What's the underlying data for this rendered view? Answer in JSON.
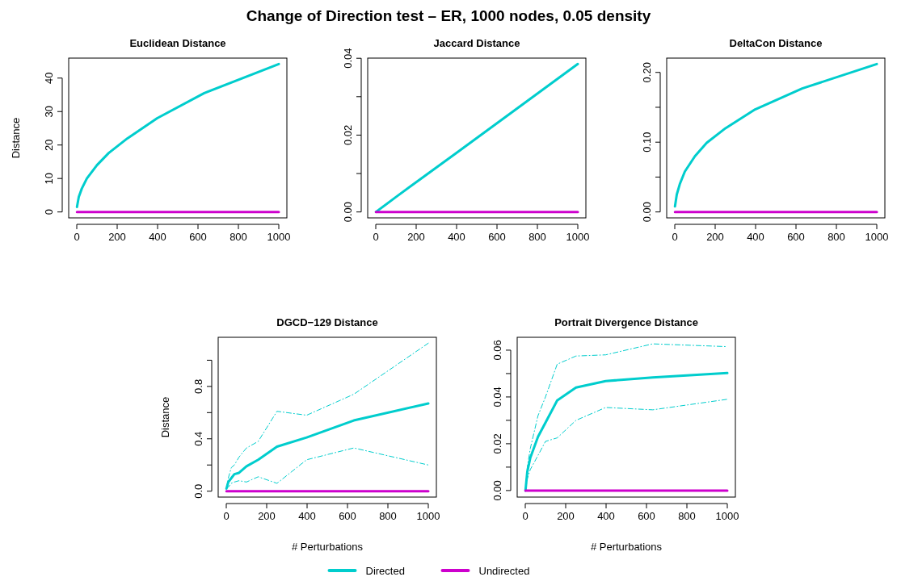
{
  "chart_data": [
    {
      "type": "line",
      "title": "Euclidean Distance",
      "ylabel": "Distance",
      "annotations": [
        "Change of Direction test – ER, 1000 nodes, 0.05 density"
      ],
      "legend": "bottom",
      "xlim": [
        -40,
        1040
      ],
      "xticks": [
        0,
        200,
        400,
        600,
        800,
        1000
      ],
      "ylim": [
        -1.77,
        45.97
      ],
      "yticks": [
        0,
        10,
        20,
        30,
        40
      ],
      "series": [
        {
          "name": "Directed",
          "color": "#00cdcd",
          "x": [
            1,
            10,
            25,
            50,
            100,
            158,
            251,
            398,
            631,
            1000
          ],
          "values": [
            1.5,
            4.5,
            7,
            10,
            14,
            17.6,
            22,
            28,
            35.5,
            44.2
          ]
        },
        {
          "name": "Undirected",
          "color": "#cd00cd",
          "x": [
            1,
            1000
          ],
          "values": [
            0,
            0
          ]
        }
      ]
    },
    {
      "type": "line",
      "title": "Jaccard Distance",
      "xlim": [
        -40,
        1040
      ],
      "xticks": [
        0,
        200,
        400,
        600,
        800,
        1000
      ],
      "ylim": [
        -0.00154,
        0.04004
      ],
      "yticks": [
        {
          "value": 0,
          "label": "0.00"
        },
        {
          "value": 0.01,
          "label": null
        },
        {
          "value": 0.02,
          "label": "0.02"
        },
        {
          "value": 0.03,
          "label": null
        },
        {
          "value": 0.04,
          "label": "0.04"
        }
      ],
      "series": [
        {
          "color": "#00cdcd",
          "x": [
            1,
            100,
            251,
            398,
            631,
            1000
          ],
          "values": [
            0,
            0.0039,
            0.0097,
            0.0153,
            0.0243,
            0.0385
          ]
        },
        {
          "color": "#cd00cd",
          "x": [
            1,
            1000
          ],
          "values": [
            0,
            0
          ]
        }
      ]
    },
    {
      "type": "line",
      "title": "DeltaCon Distance",
      "xlim": [
        -40,
        1040
      ],
      "xticks": [
        0,
        200,
        400,
        600,
        800,
        1000
      ],
      "ylim": [
        -0.0085,
        0.2205
      ],
      "yticks": [
        {
          "value": 0,
          "label": "0.00"
        },
        {
          "value": 0.05,
          "label": null
        },
        {
          "value": 0.1,
          "label": "0.10"
        },
        {
          "value": 0.15,
          "label": null
        },
        {
          "value": 0.2,
          "label": "0.20"
        }
      ],
      "series": [
        {
          "color": "#00cdcd",
          "x": [
            1,
            10,
            25,
            50,
            100,
            158,
            251,
            398,
            631,
            1000
          ],
          "values": [
            0.008,
            0.025,
            0.04,
            0.058,
            0.08,
            0.099,
            0.12,
            0.147,
            0.177,
            0.212
          ]
        },
        {
          "color": "#cd00cd",
          "x": [
            1,
            1000
          ],
          "values": [
            0,
            0
          ]
        }
      ]
    },
    {
      "type": "line",
      "title": "DGCD−129 Distance",
      "xlabel": "# Perturbations",
      "ylabel": "Distance",
      "xlim": [
        -40,
        1040
      ],
      "xticks": [
        0,
        200,
        400,
        600,
        800,
        1000
      ],
      "ylim": [
        -0.045,
        1.175
      ],
      "yticks": [
        {
          "value": 0,
          "label": "0.0"
        },
        {
          "value": 0.2,
          "label": null
        },
        {
          "value": 0.4,
          "label": "0.4"
        },
        {
          "value": 0.6,
          "label": null
        },
        {
          "value": 0.8,
          "label": "0.8"
        },
        {
          "value": 1.0,
          "label": null
        }
      ],
      "series": [
        {
          "color": "#00cdcd",
          "x": [
            1,
            10,
            25,
            40,
            63,
            100,
            158,
            251,
            398,
            631,
            1000
          ],
          "values": [
            0.02,
            0.07,
            0.1,
            0.13,
            0.14,
            0.19,
            0.24,
            0.34,
            0.41,
            0.54,
            0.67
          ]
        },
        {
          "color": "#00cdcd",
          "line_style": "dashed",
          "x": [
            1,
            10,
            25,
            40,
            63,
            100,
            158,
            251,
            398,
            631,
            1000
          ],
          "values": [
            0.02,
            0.03,
            0.06,
            0.07,
            0.08,
            0.07,
            0.11,
            0.06,
            0.24,
            0.33,
            0.2
          ]
        },
        {
          "color": "#00cdcd",
          "line_style": "dashed",
          "x": [
            1,
            10,
            25,
            40,
            63,
            100,
            158,
            251,
            398,
            631,
            1000
          ],
          "values": [
            0.02,
            0.1,
            0.18,
            0.2,
            0.26,
            0.33,
            0.38,
            0.61,
            0.58,
            0.74,
            1.13
          ]
        },
        {
          "color": "#cd00cd",
          "x": [
            1,
            1000
          ],
          "values": [
            0,
            0
          ]
        }
      ]
    },
    {
      "type": "line",
      "title": "Portrait Divergence Distance",
      "xlabel": "# Perturbations",
      "xlim": [
        -40,
        1040
      ],
      "xticks": [
        0,
        200,
        400,
        600,
        800,
        1000
      ],
      "ylim": [
        -0.0028,
        0.0655
      ],
      "yticks": [
        {
          "value": 0,
          "label": "0.00"
        },
        {
          "value": 0.01,
          "label": null
        },
        {
          "value": 0.02,
          "label": "0.02"
        },
        {
          "value": 0.03,
          "label": null
        },
        {
          "value": 0.04,
          "label": "0.04"
        },
        {
          "value": 0.05,
          "label": null
        },
        {
          "value": 0.06,
          "label": "0.06"
        }
      ],
      "series": [
        {
          "color": "#00cdcd",
          "x": [
            1,
            10,
            25,
            63,
            100,
            158,
            251,
            398,
            631,
            1000
          ],
          "values": [
            0,
            0.008,
            0.014,
            0.023,
            0.029,
            0.0385,
            0.044,
            0.0468,
            0.0483,
            0.0502
          ]
        },
        {
          "color": "#00cdcd",
          "line_style": "dashed",
          "x": [
            1,
            10,
            25,
            63,
            100,
            158,
            251,
            398,
            631,
            1000
          ],
          "values": [
            -0.0003,
            0.005,
            0.009,
            0.015,
            0.021,
            0.0225,
            0.03,
            0.0355,
            0.0345,
            0.039
          ]
        },
        {
          "color": "#00cdcd",
          "line_style": "dashed",
          "x": [
            1,
            10,
            25,
            63,
            100,
            158,
            251,
            398,
            631,
            1000
          ],
          "values": [
            0,
            0.01,
            0.018,
            0.032,
            0.04,
            0.054,
            0.0575,
            0.058,
            0.0627,
            0.0615
          ]
        },
        {
          "color": "#cd00cd",
          "x": [
            1,
            1000
          ],
          "values": [
            0,
            0
          ]
        }
      ]
    }
  ]
}
